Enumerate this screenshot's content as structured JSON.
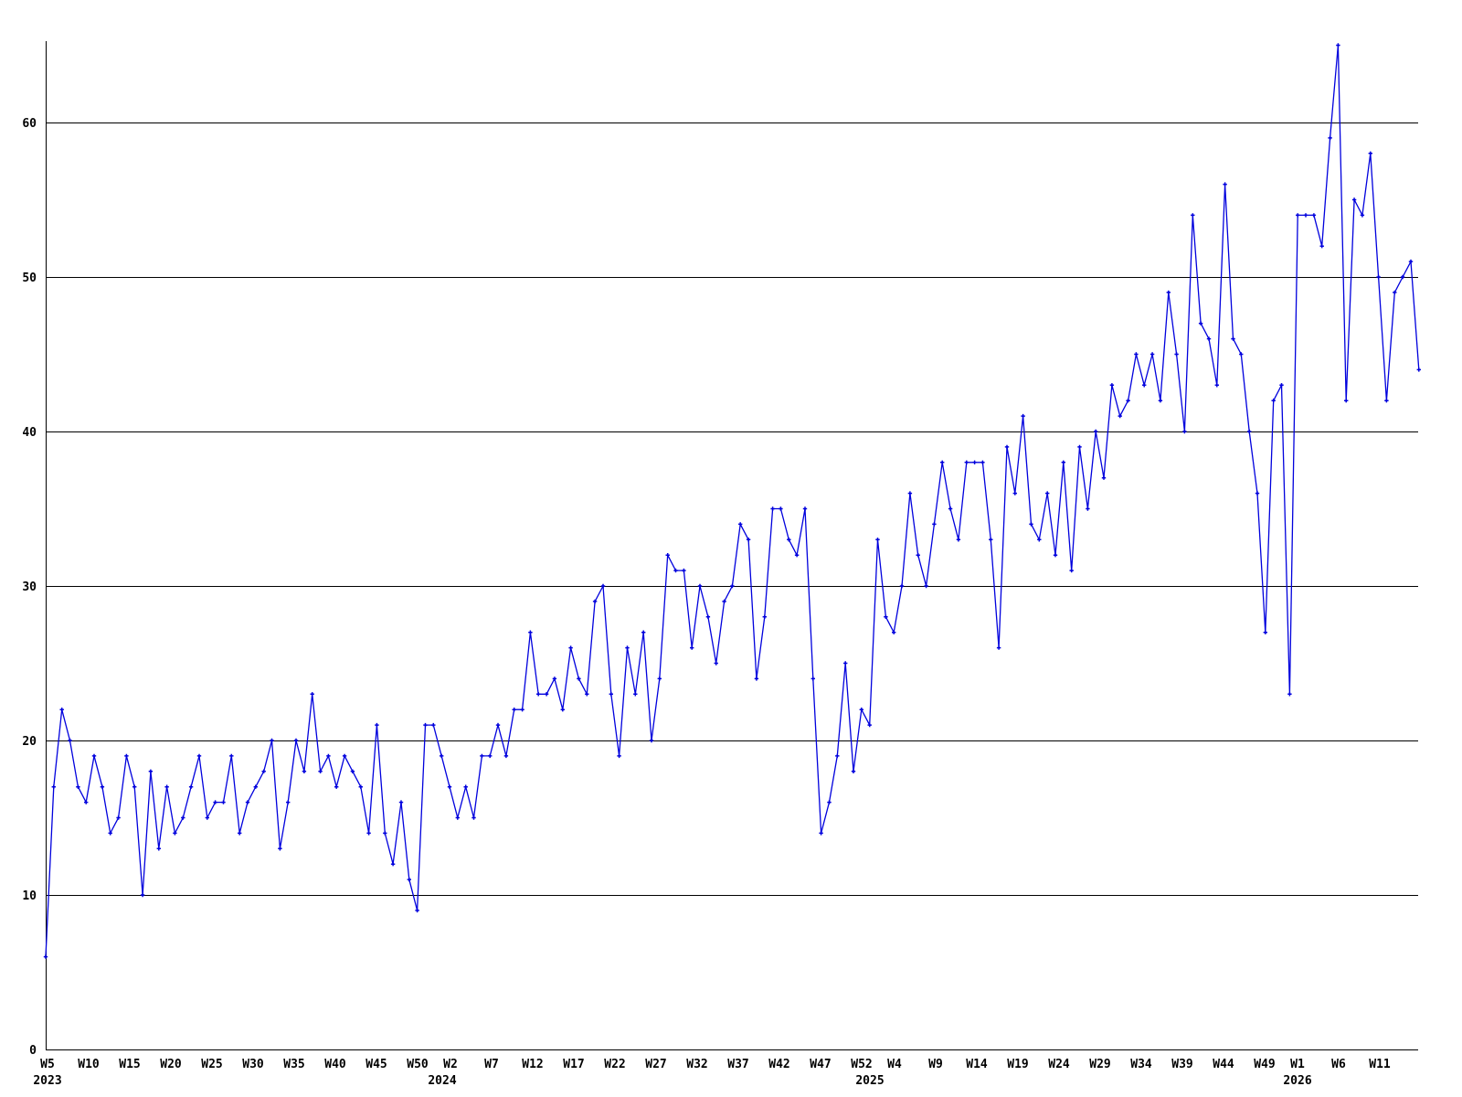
{
  "chart_data": {
    "type": "line",
    "title": "",
    "frequency": "weekly",
    "start_point": {
      "year": 2023,
      "week": 5
    },
    "values": [
      6,
      17,
      22,
      20,
      17,
      16,
      19,
      17,
      14,
      15,
      19,
      17,
      10,
      18,
      13,
      17,
      14,
      15,
      17,
      19,
      15,
      16,
      16,
      19,
      14,
      16,
      17,
      18,
      20,
      13,
      16,
      20,
      18,
      23,
      18,
      19,
      17,
      19,
      18,
      17,
      14,
      21,
      14,
      12,
      16,
      11,
      9,
      21,
      21,
      19,
      17,
      15,
      17,
      15,
      19,
      19,
      21,
      19,
      22,
      22,
      27,
      23,
      23,
      24,
      22,
      26,
      24,
      23,
      29,
      30,
      23,
      19,
      26,
      23,
      27,
      20,
      24,
      32,
      31,
      31,
      26,
      30,
      28,
      25,
      29,
      30,
      34,
      33,
      24,
      28,
      35,
      35,
      33,
      32,
      35,
      24,
      14,
      16,
      19,
      25,
      18,
      22,
      21,
      33,
      28,
      27,
      30,
      36,
      32,
      30,
      34,
      38,
      35,
      33,
      38,
      38,
      38,
      33,
      26,
      39,
      36,
      41,
      34,
      33,
      36,
      32,
      38,
      31,
      39,
      35,
      40,
      37,
      43,
      41,
      42,
      45,
      43,
      45,
      42,
      49,
      45,
      40,
      54,
      47,
      46,
      43,
      56,
      46,
      45,
      40,
      36,
      27,
      42,
      43,
      23,
      54,
      54,
      54,
      52,
      59,
      65,
      42,
      55,
      54,
      58,
      50,
      42,
      49,
      50,
      51,
      44
    ],
    "y_ticks": [
      0,
      10,
      20,
      30,
      40,
      50,
      60
    ],
    "ylim": [
      0,
      68
    ],
    "x_ticks": [
      {
        "label": "W5",
        "idx": 0
      },
      {
        "label": "W10",
        "idx": 5
      },
      {
        "label": "W15",
        "idx": 10
      },
      {
        "label": "W20",
        "idx": 15
      },
      {
        "label": "W25",
        "idx": 20
      },
      {
        "label": "W30",
        "idx": 25
      },
      {
        "label": "W35",
        "idx": 30
      },
      {
        "label": "W40",
        "idx": 35
      },
      {
        "label": "W45",
        "idx": 40
      },
      {
        "label": "W50",
        "idx": 45
      },
      {
        "label": "W2",
        "idx": 49
      },
      {
        "label": "W7",
        "idx": 54
      },
      {
        "label": "W12",
        "idx": 59
      },
      {
        "label": "W17",
        "idx": 64
      },
      {
        "label": "W22",
        "idx": 69
      },
      {
        "label": "W27",
        "idx": 74
      },
      {
        "label": "W32",
        "idx": 79
      },
      {
        "label": "W37",
        "idx": 84
      },
      {
        "label": "W42",
        "idx": 89
      },
      {
        "label": "W47",
        "idx": 94
      },
      {
        "label": "W52",
        "idx": 99
      },
      {
        "label": "W4",
        "idx": 103
      },
      {
        "label": "W9",
        "idx": 108
      },
      {
        "label": "W14",
        "idx": 113
      },
      {
        "label": "W19",
        "idx": 118
      },
      {
        "label": "W24",
        "idx": 123
      },
      {
        "label": "W29",
        "idx": 128
      },
      {
        "label": "W34",
        "idx": 133
      },
      {
        "label": "W39",
        "idx": 138
      },
      {
        "label": "W44",
        "idx": 143
      },
      {
        "label": "W49",
        "idx": 148
      },
      {
        "label": "W1",
        "idx": 152
      },
      {
        "label": "W6",
        "idx": 157
      },
      {
        "label": "W11",
        "idx": 162
      }
    ],
    "year_labels": [
      {
        "label": "2023",
        "idx": 0
      },
      {
        "label": "2024",
        "idx": 48
      },
      {
        "label": "2025",
        "idx": 100
      },
      {
        "label": "2026",
        "idx": 152
      }
    ],
    "line_color": "#0000dd",
    "grid_color": "#000000",
    "background_color": "#ffffff",
    "marker": "plus",
    "legend": "none",
    "grid": "horizontal"
  }
}
